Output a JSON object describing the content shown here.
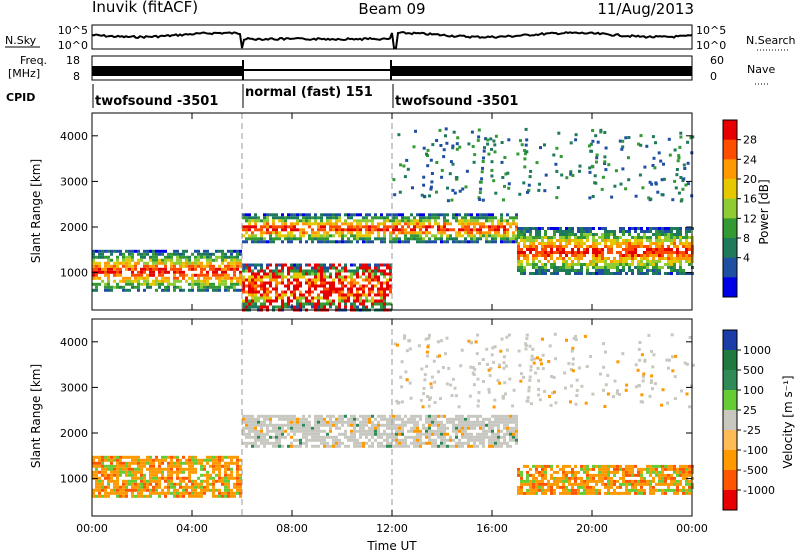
{
  "header": {
    "station": "Inuvik (fitACF)",
    "beam": "Beam 09",
    "date": "11/Aug/2013"
  },
  "noise_panel": {
    "left_label": "N.Sky",
    "right_label": "N.Search",
    "left_ticks": [
      "10^5",
      "10^0"
    ],
    "right_ticks": [
      "10^5",
      "10^0"
    ]
  },
  "freq_panel": {
    "left_label_line1": "Freq.",
    "left_label_line2": "[MHz]",
    "right_label": "Nave",
    "left_ticks": [
      "18",
      "8"
    ],
    "right_ticks": [
      "60",
      "0"
    ]
  },
  "cpid": {
    "label": "CPID",
    "segments": [
      {
        "start": 0,
        "end": 6,
        "text": "twofsound -3501"
      },
      {
        "start": 6,
        "end": 12,
        "text": "normal (fast) 151"
      },
      {
        "start": 12,
        "end": 24,
        "text": "twofsound -3501"
      }
    ]
  },
  "power_colorbar": {
    "label": "Power [dB]",
    "ticks": [
      "28",
      "24",
      "20",
      "16",
      "12",
      "8",
      "4"
    ],
    "colors": [
      "#e60000",
      "#ff4d00",
      "#ff9900",
      "#e6c800",
      "#8fcc33",
      "#339933",
      "#1f7a5c",
      "#1f4fa3",
      "#0000e6"
    ]
  },
  "velocity_colorbar": {
    "label": "Velocity [m s⁻¹]",
    "ticks": [
      "1000",
      "500",
      "100",
      "25",
      "-25",
      "-100",
      "-500",
      "-1000"
    ],
    "colors": [
      "#1a3da8",
      "#1f7a3d",
      "#2e8b57",
      "#66cc33",
      "#c8c8c0",
      "#ffbb55",
      "#ff9900",
      "#ff5500",
      "#e60000"
    ]
  },
  "chart_data": [
    {
      "type": "heatmap",
      "name": "power",
      "ylabel": "Slant Range [km]",
      "xlabel": "",
      "xlim": [
        0,
        24
      ],
      "ylim": [
        180,
        4500
      ],
      "yticks": [
        1000,
        2000,
        3000,
        4000
      ],
      "xticks": [
        "00:00",
        "04:00",
        "08:00",
        "12:00",
        "16:00",
        "20:00",
        "00:00"
      ],
      "regions": [
        {
          "x": [
            0,
            6
          ],
          "y": [
            600,
            1500
          ],
          "level": "16-24"
        },
        {
          "x": [
            6,
            12
          ],
          "y": [
            1700,
            2300
          ],
          "level": "16-24"
        },
        {
          "x": [
            6,
            12
          ],
          "y": [
            200,
            1200
          ],
          "level": "24-28"
        },
        {
          "x": [
            12,
            17
          ],
          "y": [
            1700,
            2300
          ],
          "level": "16-24"
        },
        {
          "x": [
            17,
            24
          ],
          "y": [
            1000,
            2000
          ],
          "level": "16-28"
        }
      ]
    },
    {
      "type": "heatmap",
      "name": "velocity",
      "ylabel": "Slant Range [km]",
      "xlabel": "Time UT",
      "xlim": [
        0,
        24
      ],
      "ylim": [
        180,
        4500
      ],
      "yticks": [
        1000,
        2000,
        3000,
        4000
      ],
      "xticks": [
        "00:00",
        "04:00",
        "08:00",
        "12:00",
        "16:00",
        "20:00",
        "00:00"
      ],
      "regions": [
        {
          "x": [
            0,
            6
          ],
          "y": [
            600,
            1500
          ],
          "level": "-100 to -500"
        },
        {
          "x": [
            6,
            12
          ],
          "y": [
            1700,
            2400
          ],
          "level": "-25 to 25"
        },
        {
          "x": [
            12,
            17
          ],
          "y": [
            1700,
            2400
          ],
          "level": "-25 to 25"
        },
        {
          "x": [
            17,
            24
          ],
          "y": [
            700,
            1300
          ],
          "level": "-100 to -500"
        }
      ]
    }
  ]
}
